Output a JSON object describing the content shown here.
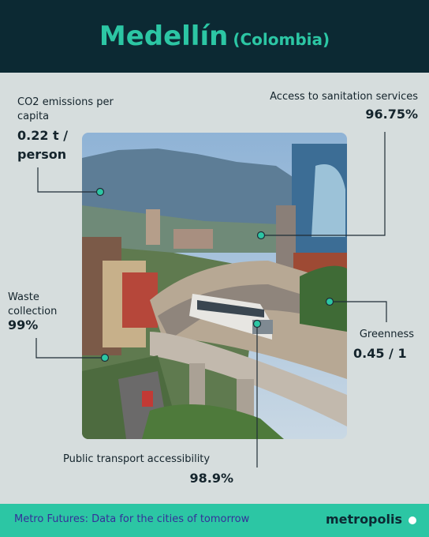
{
  "header": {
    "title": "Medellín",
    "subtitle": "(Colombia)"
  },
  "stats": [
    {
      "label": "CO2 emissions per capita",
      "value": "0.22 t / person"
    },
    {
      "label": "Access to sanitation services",
      "value": "96.75%"
    },
    {
      "label": "Waste collection",
      "value": "99%"
    },
    {
      "label": "Greenness",
      "value": "0.45 / 1"
    },
    {
      "label": "Public transport accessibility",
      "value": "98.9%"
    }
  ],
  "footer": {
    "tagline": "Metro Futures: Data for the cities of tomorrow",
    "brand": "metropolis"
  }
}
